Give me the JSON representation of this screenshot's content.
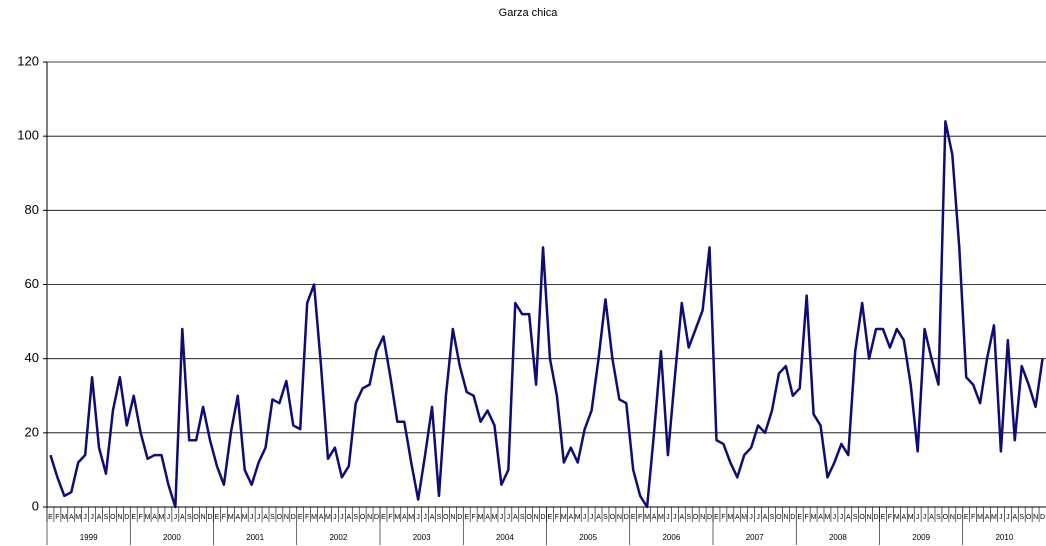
{
  "chart_data": {
    "type": "line",
    "title": "Garza chica",
    "categories": [
      "E",
      "F",
      "M",
      "A",
      "M",
      "J",
      "J",
      "A",
      "S",
      "O",
      "N",
      "D",
      "E",
      "F",
      "M",
      "A",
      "M",
      "J",
      "J",
      "A",
      "S",
      "O",
      "N",
      "D",
      "E",
      "F",
      "M",
      "A",
      "M",
      "J",
      "J",
      "A",
      "S",
      "O",
      "N",
      "D",
      "E",
      "F",
      "M",
      "A",
      "M",
      "J",
      "J",
      "A",
      "S",
      "O",
      "N",
      "D",
      "E",
      "F",
      "M",
      "A",
      "M",
      "J",
      "J",
      "A",
      "S",
      "O",
      "N",
      "D",
      "E",
      "F",
      "M",
      "A",
      "M",
      "J",
      "J",
      "A",
      "S",
      "O",
      "N",
      "D",
      "E",
      "F",
      "M",
      "A",
      "M",
      "J",
      "J",
      "A",
      "S",
      "O",
      "N",
      "D",
      "E",
      "F",
      "M",
      "A",
      "M",
      "J",
      "J",
      "A",
      "S",
      "O",
      "N",
      "D",
      "E",
      "F",
      "M",
      "A",
      "M",
      "J",
      "J",
      "A",
      "S",
      "O",
      "N",
      "D",
      "E",
      "F",
      "M",
      "A",
      "M",
      "J",
      "J",
      "A",
      "S",
      "O",
      "N",
      "D",
      "E",
      "F",
      "M",
      "A",
      "M",
      "J",
      "J",
      "A",
      "S",
      "O",
      "N",
      "D",
      "E",
      "F",
      "M",
      "A",
      "M",
      "J",
      "J",
      "A",
      "S",
      "O",
      "N",
      "D"
    ],
    "years": [
      "1999",
      "2000",
      "2001",
      "2002",
      "2003",
      "2004",
      "2005",
      "2006",
      "2007",
      "2008",
      "2009",
      "2010"
    ],
    "values": [
      14,
      8,
      3,
      4,
      12,
      14,
      35,
      16,
      9,
      26,
      35,
      22,
      30,
      20,
      13,
      14,
      14,
      6,
      0,
      48,
      18,
      18,
      27,
      18,
      11,
      6,
      20,
      30,
      10,
      6,
      12,
      16,
      29,
      28,
      34,
      22,
      21,
      55,
      60,
      38,
      13,
      16,
      8,
      11,
      28,
      32,
      33,
      42,
      46,
      35,
      23,
      23,
      12,
      2,
      14,
      27,
      3,
      30,
      48,
      38,
      31,
      30,
      23,
      26,
      22,
      6,
      10,
      55,
      52,
      52,
      33,
      70,
      40,
      30,
      12,
      16,
      12,
      21,
      26,
      40,
      56,
      40,
      29,
      28,
      10,
      3,
      0,
      20,
      42,
      14,
      35,
      55,
      43,
      48,
      53,
      70,
      18,
      17,
      12,
      8,
      14,
      16,
      22,
      20,
      26,
      36,
      38,
      30,
      32,
      57,
      25,
      22,
      8,
      12,
      17,
      14,
      42,
      55,
      40,
      48,
      48,
      43,
      48,
      45,
      33,
      15,
      48,
      40,
      33,
      104,
      95,
      70,
      35,
      33,
      28,
      40,
      49,
      15,
      45,
      18,
      38,
      33,
      27,
      40
    ],
    "color": "#0d0d73",
    "ylim": [
      0,
      120
    ],
    "yticks": [
      0,
      20,
      40,
      60,
      80,
      100,
      120
    ],
    "grid": true
  }
}
